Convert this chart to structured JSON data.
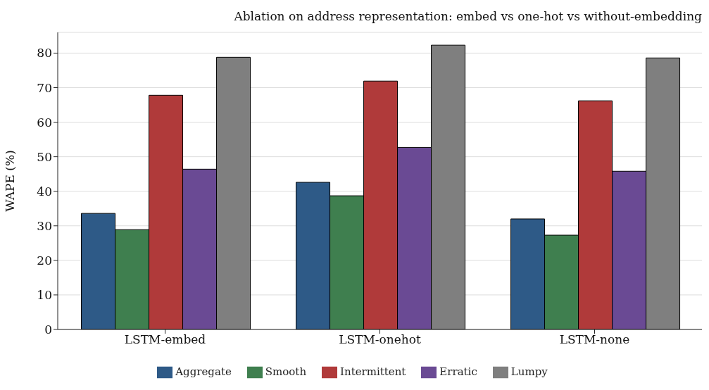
{
  "chart_data": {
    "type": "bar",
    "title": "Ablation on address representation: embed vs one-hot vs without-embedding",
    "ylabel": "WAPE (%)",
    "categories": [
      "LSTM-embed",
      "LSTM-onehot",
      "LSTM-none"
    ],
    "series": [
      {
        "name": "Aggregate",
        "color": "#2e5a87",
        "values": [
          33.6,
          42.6,
          32.0
        ]
      },
      {
        "name": "Smooth",
        "color": "#3f7f4f",
        "values": [
          28.9,
          38.7,
          27.3
        ]
      },
      {
        "name": "Intermittent",
        "color": "#b03a3a",
        "values": [
          67.8,
          71.9,
          66.2
        ]
      },
      {
        "name": "Erratic",
        "color": "#6a4a94",
        "values": [
          46.4,
          52.7,
          45.8
        ]
      },
      {
        "name": "Lumpy",
        "color": "#7f7f7f",
        "values": [
          78.8,
          82.3,
          78.6
        ]
      }
    ],
    "ylim": [
      0,
      86
    ],
    "yticks": [
      0,
      10,
      20,
      30,
      40,
      50,
      60,
      70,
      80
    ],
    "grid": "y",
    "legend": "bottom"
  }
}
